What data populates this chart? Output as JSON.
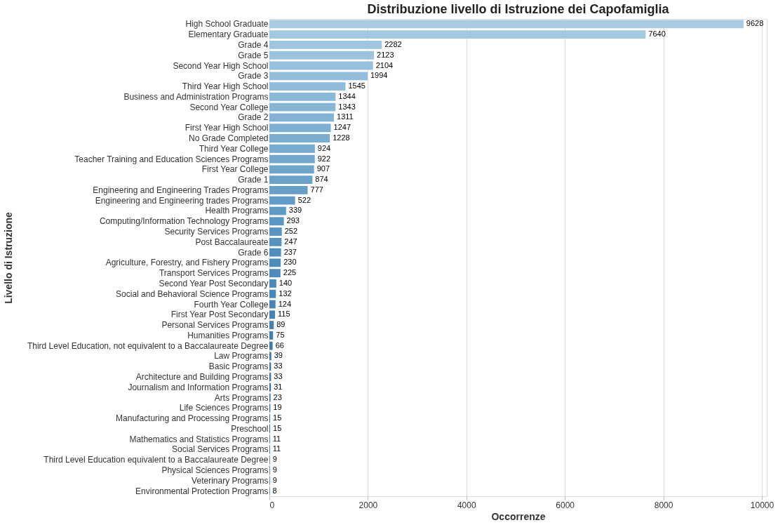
{
  "chart_data": {
    "type": "bar",
    "orientation": "horizontal",
    "title": "Distribuzione livello di Istruzione dei Capofamiglia",
    "xlabel": "Occorrenze",
    "ylabel": "Livello di Istruzione",
    "categories": [
      "High School Graduate",
      "Elementary Graduate",
      "Grade 4",
      "Grade 5",
      "Second Year High School",
      "Grade 3",
      "Third Year High School",
      "Business and Administration Programs",
      "Second Year College",
      "Grade 2",
      "First Year High School",
      "No Grade Completed",
      "Third Year College",
      "Teacher Training and Education Sciences Programs",
      "First Year College",
      "Grade 1",
      "Engineering and Engineering Trades Programs",
      "Engineering and Engineering trades Programs",
      "Health Programs",
      "Computing/Information Technology Programs",
      "Security Services Programs",
      "Post Baccalaureate",
      "Grade 6",
      "Agriculture, Forestry, and Fishery Programs",
      "Transport Services Programs",
      "Second Year Post Secondary",
      "Social and Behavioral Science Programs",
      "Fourth Year College",
      "First Year Post Secondary",
      "Personal Services Programs",
      "Humanities Programs",
      "Third Level Education, not equivalent to a Baccalaureate Degree",
      "Law Programs",
      "Basic Programs",
      "Architecture and Building Programs",
      "Journalism and Information Programs",
      "Arts Programs",
      "Life Sciences Programs",
      "Manufacturing and Processing Programs",
      "Preschool",
      "Mathematics and Statistics Programs",
      "Social Services Programs",
      "Third Level Education equivalent to a Baccalaureate Degree",
      "Physical Sciences Programs",
      "Veterinary Programs",
      "Environmental Protection Programs"
    ],
    "values": [
      9628,
      7640,
      2282,
      2123,
      2104,
      1994,
      1545,
      1344,
      1343,
      1311,
      1247,
      1228,
      924,
      922,
      907,
      874,
      777,
      522,
      339,
      293,
      252,
      247,
      237,
      230,
      225,
      140,
      132,
      124,
      115,
      89,
      75,
      66,
      39,
      33,
      33,
      31,
      23,
      19,
      15,
      15,
      11,
      11,
      9,
      9,
      9,
      8
    ],
    "colors": [
      "#a6cbe3",
      "#a2c8e1",
      "#9ec6e0",
      "#9ac3de",
      "#96c0dc",
      "#92bddb",
      "#8ebbd9",
      "#8ab8d8",
      "#86b5d6",
      "#82b2d4",
      "#7eb0d3",
      "#7badd1",
      "#77aacf",
      "#73a7ce",
      "#6fa5cc",
      "#6ba2ca",
      "#679fc9",
      "#639dc7",
      "#5f9ac5",
      "#5b97c4",
      "#5794c2",
      "#5392c1",
      "#4f8fbf",
      "#4d8dbd",
      "#4c8bbb",
      "#4a89b8",
      "#4987b6",
      "#4785b4",
      "#4683b2",
      "#4481b0",
      "#437fad",
      "#417cab",
      "#407aa9",
      "#3e78a7",
      "#3d76a4",
      "#3b74a2",
      "#3a72a0",
      "#38709e",
      "#376e9c",
      "#356c99",
      "#346a97",
      "#326795",
      "#316593",
      "#2f6390",
      "#2e618e",
      "#2c5f8c"
    ],
    "xlim": [
      0,
      10100
    ],
    "xticks": [
      0,
      2000,
      4000,
      6000,
      8000,
      10000
    ],
    "grid": "x",
    "data_labels": true,
    "legend": false
  }
}
